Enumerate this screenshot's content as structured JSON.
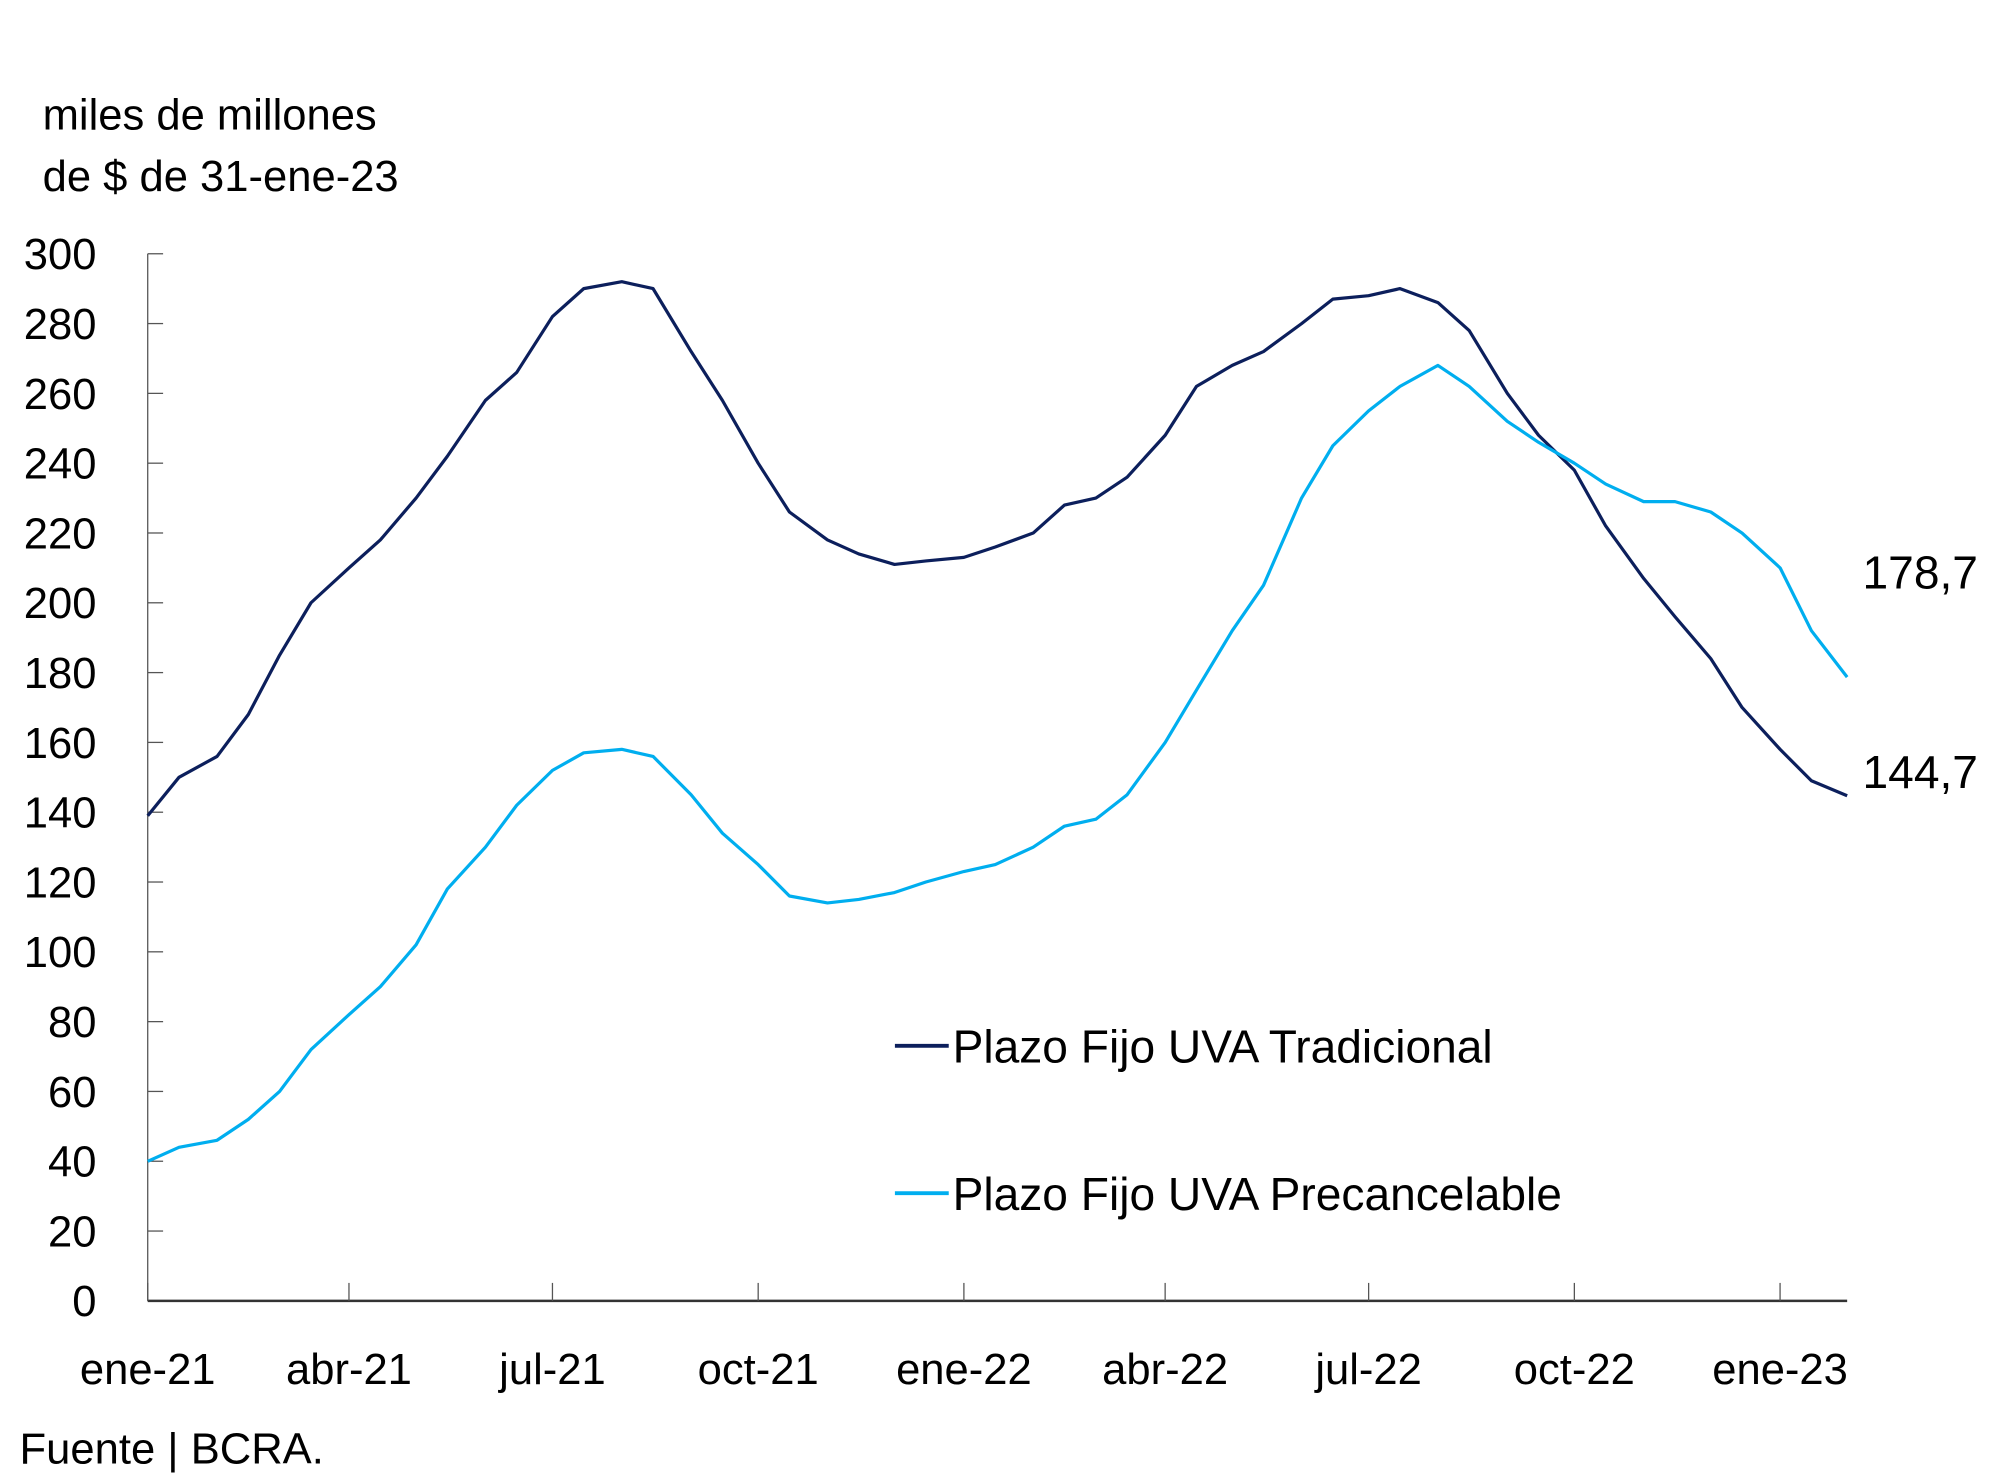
{
  "chart_data": {
    "type": "line",
    "ylabel_lines": [
      "miles de millones",
      "de $ de 31-ene-23"
    ],
    "source": "Fuente | BCRA.",
    "ylim": [
      0,
      300
    ],
    "yticks": [
      0,
      20,
      40,
      60,
      80,
      100,
      120,
      140,
      160,
      180,
      200,
      220,
      240,
      260,
      280,
      300
    ],
    "xlim": [
      "2021-01-01",
      "2023-01-31"
    ],
    "xticks": [
      {
        "date": "2021-01-01",
        "label": "ene-21"
      },
      {
        "date": "2021-04-01",
        "label": "abr-21"
      },
      {
        "date": "2021-07-01",
        "label": "jul-21"
      },
      {
        "date": "2021-10-01",
        "label": "oct-21"
      },
      {
        "date": "2022-01-01",
        "label": "ene-22"
      },
      {
        "date": "2022-04-01",
        "label": "abr-22"
      },
      {
        "date": "2022-07-01",
        "label": "jul-22"
      },
      {
        "date": "2022-10-01",
        "label": "oct-22"
      },
      {
        "date": "2023-01-01",
        "label": "ene-23"
      }
    ],
    "grid": false,
    "legend_position": "center-right",
    "series": [
      {
        "name": "Plazo Fijo UVA Tradicional",
        "color": "#0c1f5c",
        "end_label": "144,7",
        "points": [
          [
            "2021-01-01",
            139
          ],
          [
            "2021-01-15",
            150
          ],
          [
            "2021-02-01",
            156
          ],
          [
            "2021-02-15",
            168
          ],
          [
            "2021-03-01",
            185
          ],
          [
            "2021-03-15",
            200
          ],
          [
            "2021-04-01",
            210
          ],
          [
            "2021-04-15",
            218
          ],
          [
            "2021-05-01",
            230
          ],
          [
            "2021-05-15",
            242
          ],
          [
            "2021-06-01",
            258
          ],
          [
            "2021-06-15",
            266
          ],
          [
            "2021-07-01",
            282
          ],
          [
            "2021-07-15",
            290
          ],
          [
            "2021-08-01",
            292
          ],
          [
            "2021-08-15",
            290
          ],
          [
            "2021-09-01",
            272
          ],
          [
            "2021-09-15",
            258
          ],
          [
            "2021-10-01",
            240
          ],
          [
            "2021-10-15",
            226
          ],
          [
            "2021-11-01",
            218
          ],
          [
            "2021-11-15",
            214
          ],
          [
            "2021-12-01",
            211
          ],
          [
            "2021-12-15",
            212
          ],
          [
            "2022-01-01",
            213
          ],
          [
            "2022-01-15",
            216
          ],
          [
            "2022-02-01",
            220
          ],
          [
            "2022-02-15",
            228
          ],
          [
            "2022-03-01",
            230
          ],
          [
            "2022-03-15",
            236
          ],
          [
            "2022-04-01",
            248
          ],
          [
            "2022-04-15",
            262
          ],
          [
            "2022-05-01",
            268
          ],
          [
            "2022-05-15",
            272
          ],
          [
            "2022-06-01",
            280
          ],
          [
            "2022-06-15",
            287
          ],
          [
            "2022-07-01",
            288
          ],
          [
            "2022-07-15",
            290
          ],
          [
            "2022-08-01",
            286
          ],
          [
            "2022-08-15",
            278
          ],
          [
            "2022-09-01",
            260
          ],
          [
            "2022-09-15",
            248
          ],
          [
            "2022-10-01",
            238
          ],
          [
            "2022-10-15",
            222
          ],
          [
            "2022-11-01",
            207
          ],
          [
            "2022-11-15",
            196
          ],
          [
            "2022-12-01",
            184
          ],
          [
            "2022-12-15",
            170
          ],
          [
            "2023-01-01",
            158
          ],
          [
            "2023-01-15",
            149
          ],
          [
            "2023-01-31",
            144.7
          ]
        ]
      },
      {
        "name": "Plazo Fijo UVA Precancelable",
        "color": "#00aeef",
        "end_label": "178,7",
        "points": [
          [
            "2021-01-01",
            40
          ],
          [
            "2021-01-15",
            44
          ],
          [
            "2021-02-01",
            46
          ],
          [
            "2021-02-15",
            52
          ],
          [
            "2021-03-01",
            60
          ],
          [
            "2021-03-15",
            72
          ],
          [
            "2021-04-01",
            82
          ],
          [
            "2021-04-15",
            90
          ],
          [
            "2021-05-01",
            102
          ],
          [
            "2021-05-15",
            118
          ],
          [
            "2021-06-01",
            130
          ],
          [
            "2021-06-15",
            142
          ],
          [
            "2021-07-01",
            152
          ],
          [
            "2021-07-15",
            157
          ],
          [
            "2021-08-01",
            158
          ],
          [
            "2021-08-15",
            156
          ],
          [
            "2021-09-01",
            145
          ],
          [
            "2021-09-15",
            134
          ],
          [
            "2021-10-01",
            125
          ],
          [
            "2021-10-15",
            116
          ],
          [
            "2021-11-01",
            114
          ],
          [
            "2021-11-15",
            115
          ],
          [
            "2021-12-01",
            117
          ],
          [
            "2021-12-15",
            120
          ],
          [
            "2022-01-01",
            123
          ],
          [
            "2022-01-15",
            125
          ],
          [
            "2022-02-01",
            130
          ],
          [
            "2022-02-15",
            136
          ],
          [
            "2022-03-01",
            138
          ],
          [
            "2022-03-15",
            145
          ],
          [
            "2022-04-01",
            160
          ],
          [
            "2022-04-15",
            175
          ],
          [
            "2022-05-01",
            192
          ],
          [
            "2022-05-15",
            205
          ],
          [
            "2022-06-01",
            230
          ],
          [
            "2022-06-15",
            245
          ],
          [
            "2022-07-01",
            255
          ],
          [
            "2022-07-15",
            262
          ],
          [
            "2022-08-01",
            268
          ],
          [
            "2022-08-15",
            262
          ],
          [
            "2022-09-01",
            252
          ],
          [
            "2022-09-15",
            246
          ],
          [
            "2022-10-01",
            240
          ],
          [
            "2022-10-15",
            234
          ],
          [
            "2022-11-01",
            229
          ],
          [
            "2022-11-15",
            229
          ],
          [
            "2022-12-01",
            226
          ],
          [
            "2022-12-15",
            220
          ],
          [
            "2023-01-01",
            210
          ],
          [
            "2023-01-15",
            192
          ],
          [
            "2023-01-31",
            178.7
          ]
        ]
      }
    ]
  }
}
